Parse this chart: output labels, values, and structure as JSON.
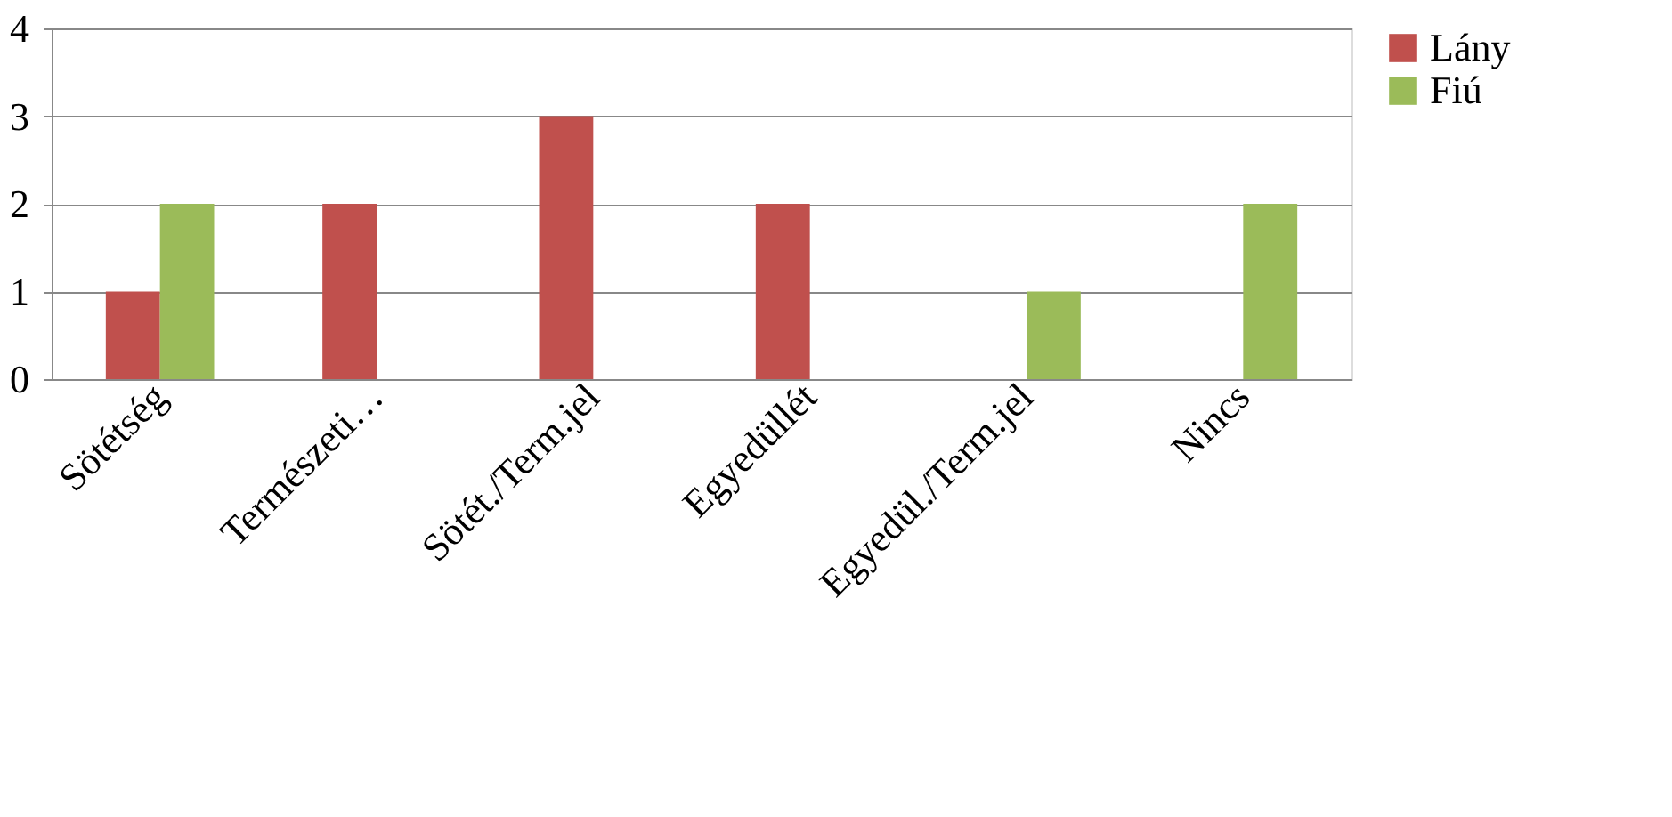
{
  "chart_data": {
    "type": "bar",
    "categories": [
      "Sötétség",
      "Természeti…",
      "Sötét./Term.jel",
      "Egyedüllét",
      "Egyedül./Term.jel",
      "Nincs"
    ],
    "series": [
      {
        "name": "Lány",
        "color": "#c0504d",
        "values": [
          1,
          2,
          3,
          2,
          0,
          0
        ]
      },
      {
        "name": "Fiú",
        "color": "#9bbb59",
        "values": [
          2,
          0,
          0,
          0,
          1,
          2
        ]
      }
    ],
    "ylim": [
      0,
      4
    ],
    "yticks": [
      0,
      1,
      2,
      3,
      4
    ],
    "grid": "y",
    "legend": "right"
  }
}
